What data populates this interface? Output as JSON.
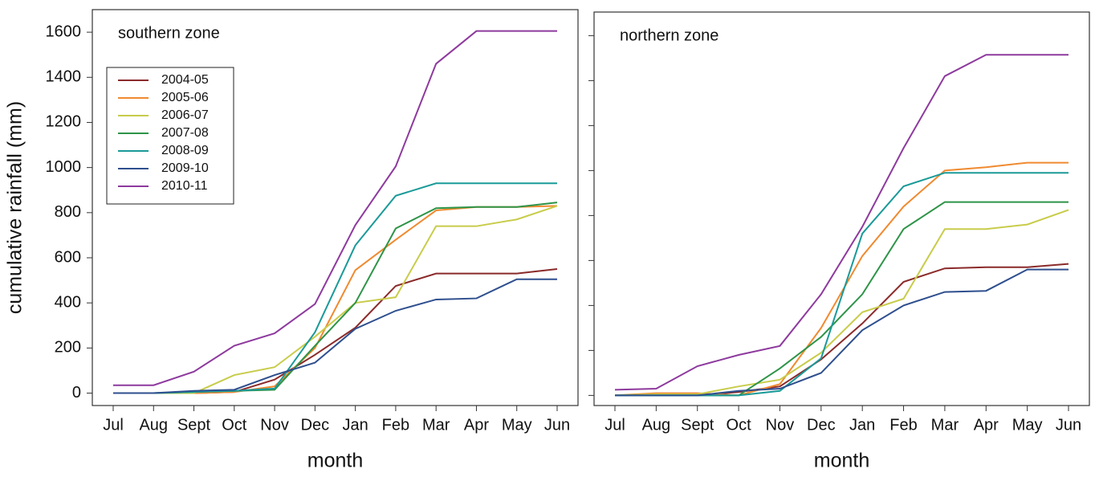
{
  "chart_data": [
    {
      "type": "line",
      "annotation": "southern zone",
      "ylabel": "cumulative rainfall (mm)",
      "xlabel": "month",
      "categories": [
        "Jul",
        "Aug",
        "Sept",
        "Oct",
        "Nov",
        "Dec",
        "Jan",
        "Feb",
        "Mar",
        "Apr",
        "May",
        "Jun"
      ],
      "ylim": [
        -55,
        1700
      ],
      "yticks": [
        0,
        200,
        400,
        600,
        800,
        1000,
        1200,
        1400,
        1600
      ],
      "tick_labels": true,
      "legend": "upper left",
      "series": [
        {
          "name": "2004-05",
          "color": "#8b2a2a",
          "values": [
            0,
            0,
            0,
            5,
            60,
            170,
            290,
            475,
            530,
            530,
            530,
            550
          ]
        },
        {
          "name": "2005-06",
          "color": "#f08a30",
          "values": [
            0,
            0,
            0,
            5,
            30,
            200,
            545,
            680,
            810,
            825,
            825,
            830
          ]
        },
        {
          "name": "2006-07",
          "color": "#c8cc4a",
          "values": [
            0,
            0,
            0,
            80,
            115,
            250,
            400,
            425,
            740,
            740,
            770,
            830
          ]
        },
        {
          "name": "2007-08",
          "color": "#2e9448",
          "values": [
            0,
            0,
            5,
            10,
            15,
            210,
            400,
            730,
            820,
            825,
            825,
            845
          ]
        },
        {
          "name": "2008-09",
          "color": "#1a9a98",
          "values": [
            0,
            0,
            5,
            10,
            20,
            270,
            655,
            875,
            930,
            930,
            930,
            930
          ]
        },
        {
          "name": "2009-10",
          "color": "#2e4f8e",
          "values": [
            0,
            0,
            10,
            15,
            80,
            135,
            285,
            365,
            415,
            420,
            505,
            505
          ]
        },
        {
          "name": "2010-11",
          "color": "#8e3a9e",
          "values": [
            35,
            35,
            95,
            210,
            265,
            395,
            745,
            1005,
            1460,
            1605,
            1605,
            1605
          ]
        }
      ]
    },
    {
      "type": "line",
      "annotation": "northern zone",
      "xlabel": "month",
      "categories": [
        "Jul",
        "Aug",
        "Sept",
        "Oct",
        "Nov",
        "Dec",
        "Jan",
        "Feb",
        "Mar",
        "Apr",
        "May",
        "Jun"
      ],
      "ylim": [
        -45,
        1705
      ],
      "yticks": [
        0,
        200,
        400,
        600,
        800,
        1000,
        1200,
        1400,
        1600
      ],
      "tick_labels": false,
      "series": [
        {
          "color": "#8b2a2a",
          "values": [
            0,
            0,
            0,
            15,
            40,
            160,
            320,
            505,
            565,
            570,
            570,
            585
          ]
        },
        {
          "color": "#f08a30",
          "values": [
            0,
            10,
            10,
            0,
            50,
            300,
            620,
            840,
            1000,
            1015,
            1035,
            1035
          ]
        },
        {
          "color": "#c8cc4a",
          "values": [
            0,
            5,
            5,
            40,
            70,
            190,
            370,
            430,
            740,
            740,
            760,
            825
          ]
        },
        {
          "color": "#2e9448",
          "values": [
            0,
            0,
            0,
            0,
            120,
            260,
            450,
            740,
            860,
            860,
            860,
            860
          ]
        },
        {
          "color": "#1a9a98",
          "values": [
            0,
            0,
            0,
            0,
            20,
            165,
            720,
            930,
            990,
            990,
            990,
            990
          ]
        },
        {
          "color": "#2e4f8e",
          "values": [
            0,
            0,
            0,
            20,
            30,
            100,
            290,
            400,
            460,
            465,
            560,
            560
          ]
        },
        {
          "color": "#8e3a9e",
          "values": [
            25,
            30,
            130,
            180,
            220,
            450,
            750,
            1100,
            1420,
            1515,
            1515,
            1515
          ]
        }
      ]
    }
  ]
}
